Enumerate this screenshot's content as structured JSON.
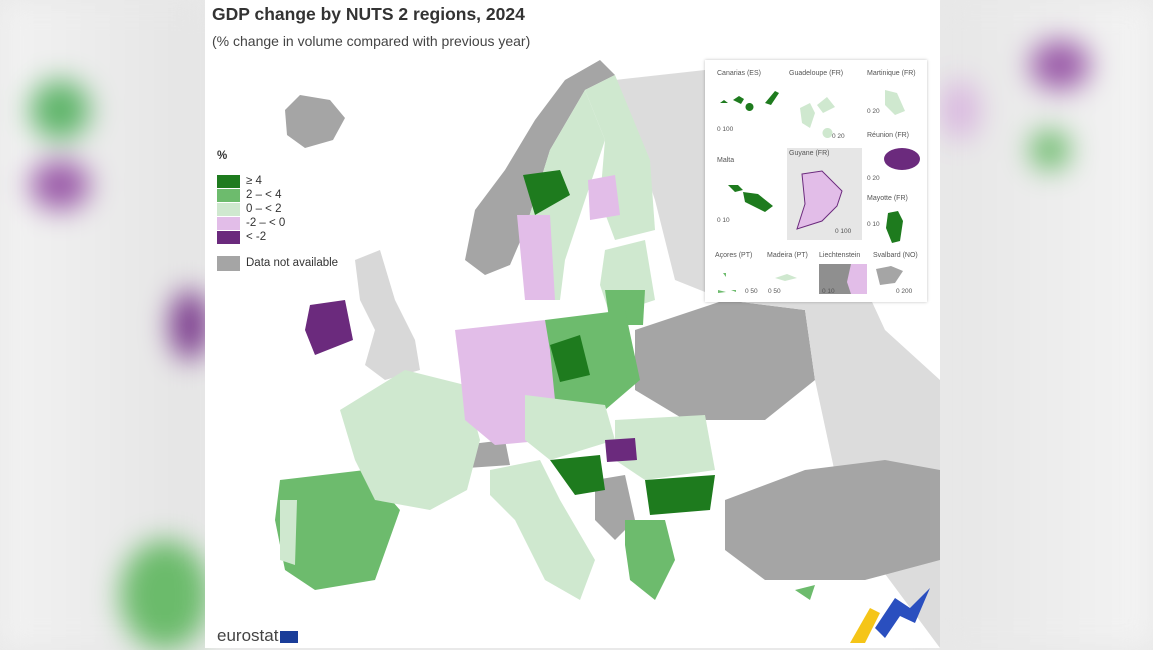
{
  "title": "GDP change by NUTS 2 regions, 2024",
  "subtitle": "(% change in volume compared with previous year)",
  "legend": {
    "unit": "%",
    "classes": [
      {
        "label": "≥ 4",
        "color": "#1e7b1e"
      },
      {
        "label": "2 – < 4",
        "color": "#6dbb6d"
      },
      {
        "label": "0 – < 2",
        "color": "#cfe8cf"
      },
      {
        "label": "-2 – < 0",
        "color": "#e2bde8"
      },
      {
        "label": "< -2",
        "color": "#6b2a7d"
      }
    ],
    "not_available": {
      "label": "Data not available",
      "color": "#a5a5a5"
    }
  },
  "insets": [
    {
      "name": "Canarias (ES)",
      "scale": "0  100",
      "class": "≥ 4"
    },
    {
      "name": "Guadeloupe (FR)",
      "scale": "0  20",
      "class": "0 – < 2"
    },
    {
      "name": "Martinique (FR)",
      "scale": "0  20",
      "class": "0 – < 2"
    },
    {
      "name": "Malta",
      "scale": "0  10",
      "class": "≥ 4"
    },
    {
      "name": "Guyane (FR)",
      "scale": "0  100",
      "class": "-2 – < 0"
    },
    {
      "name": "Réunion (FR)",
      "scale": "0  20",
      "class": "< -2"
    },
    {
      "name": "Mayotte (FR)",
      "scale": "0 10",
      "class": "≥ 4"
    },
    {
      "name": "Açores (PT)",
      "scale": "0  50",
      "class": "2 – < 4"
    },
    {
      "name": "Madeira (PT)",
      "scale": "0  50",
      "class": "0 – < 2"
    },
    {
      "name": "Liechtenstein",
      "scale": "0  10",
      "class": "Data not available"
    },
    {
      "name": "Svalbard (NO)",
      "scale": "0  200",
      "class": "Data not available"
    }
  ],
  "logo": "eurostat"
}
